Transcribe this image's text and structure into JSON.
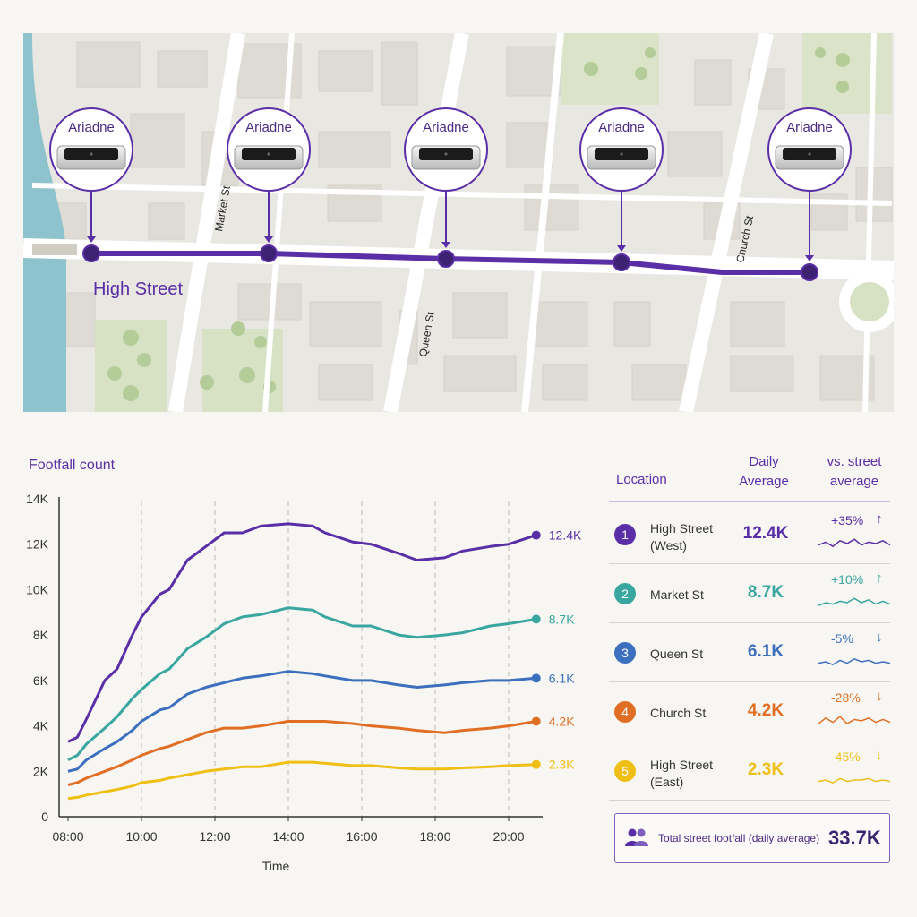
{
  "map": {
    "sensor_label": "Ariadne",
    "sensor_count": 5,
    "street_name": "High Street",
    "cross_streets": [
      "Market St",
      "Queen St",
      "Church St"
    ],
    "accent_color": "#5a2ea6"
  },
  "chart_data": {
    "type": "line",
    "title": "Footfall count",
    "xlabel": "Time",
    "ylabel": "",
    "x_ticks": [
      "08:00",
      "10:00",
      "12:00",
      "14:00",
      "16:00",
      "18:00",
      "20:00"
    ],
    "y_ticks": [
      "0",
      "2K",
      "4K",
      "6K",
      "8K",
      "10K",
      "12K",
      "14K"
    ],
    "ylim": [
      0,
      14000
    ],
    "grid": "vertical dashed",
    "x": [
      "08:00",
      "08:15",
      "08:30",
      "09:00",
      "09:20",
      "09:45",
      "10:00",
      "10:30",
      "10:45",
      "11:15",
      "11:45",
      "12:15",
      "12:45",
      "13:15",
      "14:00",
      "14:40",
      "15:00",
      "15:45",
      "16:15",
      "17:00",
      "17:30",
      "18:15",
      "18:45",
      "19:30",
      "20:00",
      "20:45"
    ],
    "series": [
      {
        "name": "High Street (West)",
        "end_label": "12.4K",
        "color": "#5a2ea6",
        "values": [
          3300,
          3500,
          4300,
          6000,
          6500,
          8000,
          8800,
          9800,
          10000,
          11300,
          11900,
          12500,
          12500,
          12800,
          12900,
          12800,
          12500,
          12100,
          12000,
          11600,
          11300,
          11400,
          11700,
          11900,
          12000,
          12400
        ]
      },
      {
        "name": "Market St",
        "end_label": "8.7K",
        "color": "#3aa6a0",
        "values": [
          2500,
          2700,
          3200,
          3900,
          4400,
          5200,
          5600,
          6300,
          6500,
          7400,
          7900,
          8500,
          8800,
          8900,
          9200,
          9100,
          8800,
          8400,
          8400,
          8000,
          7900,
          8000,
          8100,
          8400,
          8500,
          8700
        ]
      },
      {
        "name": "Queen St",
        "end_label": "6.1K",
        "color": "#3c6fbd",
        "values": [
          2000,
          2100,
          2500,
          3000,
          3300,
          3800,
          4200,
          4700,
          4800,
          5400,
          5700,
          5900,
          6100,
          6200,
          6400,
          6300,
          6200,
          6000,
          6000,
          5800,
          5700,
          5800,
          5900,
          6000,
          6000,
          6100
        ]
      },
      {
        "name": "Church St",
        "end_label": "4.2K",
        "color": "#e06f25",
        "values": [
          1400,
          1500,
          1700,
          2000,
          2200,
          2500,
          2700,
          3000,
          3100,
          3400,
          3700,
          3900,
          3900,
          4000,
          4200,
          4200,
          4200,
          4100,
          4000,
          3900,
          3800,
          3700,
          3800,
          3900,
          4000,
          4200
        ]
      },
      {
        "name": "High Street (East)",
        "end_label": "2.3K",
        "color": "#f0bf16",
        "values": [
          800,
          850,
          950,
          1100,
          1200,
          1350,
          1500,
          1600,
          1700,
          1850,
          2000,
          2100,
          2200,
          2200,
          2400,
          2400,
          2350,
          2250,
          2250,
          2150,
          2100,
          2100,
          2150,
          2200,
          2250,
          2300
        ]
      }
    ]
  },
  "table": {
    "headers": {
      "location": "Location",
      "avg_line1": "Daily",
      "avg_line2": "Average",
      "vs_line1": "vs. street",
      "vs_line2": "average"
    },
    "rows": [
      {
        "rank": "1",
        "loc1": "High Street",
        "loc2": "(West)",
        "avg": "12.4K",
        "pct": "+35%",
        "arrow": "↑",
        "color": "#5a2ea6",
        "arrow_color": "#5a2ea6",
        "spark": [
          4,
          6,
          3,
          7,
          5,
          8,
          4,
          6,
          5,
          7,
          4
        ]
      },
      {
        "rank": "2",
        "loc1": "Market St",
        "loc2": "",
        "avg": "8.7K",
        "pct": "+10%",
        "arrow": "↑",
        "color": "#3aa6a0",
        "arrow_color": "#3aa6a0",
        "spark": [
          3,
          5,
          4,
          6,
          5,
          8,
          5,
          7,
          4,
          6,
          4
        ]
      },
      {
        "rank": "3",
        "loc1": "Queen St",
        "loc2": "",
        "avg": "6.1K",
        "pct": "-5%",
        "arrow": "↓",
        "color": "#3c6fbd",
        "arrow_color": "#3c6fbd",
        "spark": [
          4,
          5,
          3,
          6,
          4,
          7,
          5,
          6,
          4,
          5,
          4
        ]
      },
      {
        "rank": "4",
        "loc1": "Church St",
        "loc2": "",
        "avg": "4.2K",
        "pct": "-28%",
        "arrow": "↓",
        "color": "#e06f25",
        "arrow_color": "#e06f25",
        "spark": [
          3,
          7,
          4,
          8,
          3,
          6,
          5,
          7,
          4,
          6,
          4
        ]
      },
      {
        "rank": "5",
        "loc1": "High Street",
        "loc2": "(East)",
        "avg": "2.3K",
        "pct": "-45%",
        "arrow": "↓",
        "color": "#f0bf16",
        "arrow_color": "#f0bf16",
        "spark": [
          4,
          5,
          3,
          6,
          4,
          5,
          5,
          6,
          4,
          5,
          4
        ]
      }
    ]
  },
  "total": {
    "label": "Total street footfall (daily average)",
    "value": "33.7K",
    "icon": "people-icon"
  }
}
